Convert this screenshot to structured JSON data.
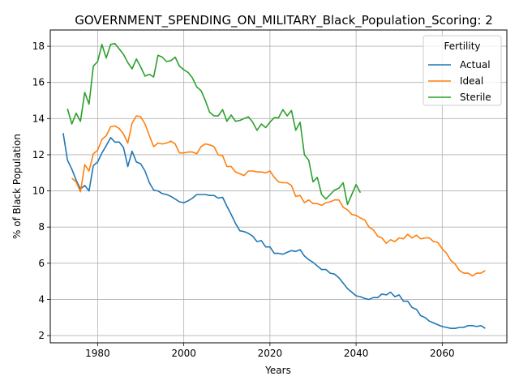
{
  "chart_data": {
    "type": "line",
    "title": "GOVERNMENT_SPENDING_ON_MILITARY_Black_Population_Scoring: 2",
    "xlabel": "Years",
    "ylabel": "% of Black Population",
    "xlim": [
      1969,
      2075
    ],
    "ylim": [
      1.6,
      18.9
    ],
    "xticks": [
      1980,
      2000,
      2020,
      2040,
      2060
    ],
    "yticks": [
      2,
      4,
      6,
      8,
      10,
      12,
      14,
      16,
      18
    ],
    "grid": true,
    "legend": {
      "title": "Fertility",
      "position": "top-right"
    },
    "series": [
      {
        "name": "Actual",
        "color": "#1f77b4",
        "points": [
          [
            1972,
            13.2
          ],
          [
            1973,
            11.7
          ],
          [
            1974,
            11.2
          ],
          [
            1975,
            10.6
          ],
          [
            1976,
            10.1
          ],
          [
            1977,
            10.3
          ],
          [
            1978,
            10.0
          ],
          [
            1979,
            11.4
          ],
          [
            1980,
            11.6
          ],
          [
            1981,
            12.1
          ],
          [
            1982,
            12.5
          ],
          [
            1983,
            12.95
          ],
          [
            1984,
            12.7
          ],
          [
            1985,
            12.7
          ],
          [
            1986,
            12.4
          ],
          [
            1987,
            11.35
          ],
          [
            1988,
            12.2
          ],
          [
            1989,
            11.6
          ],
          [
            1990,
            11.5
          ],
          [
            1991,
            11.1
          ],
          [
            1992,
            10.45
          ],
          [
            1993,
            10.05
          ],
          [
            1994,
            10.0
          ],
          [
            1995,
            9.85
          ],
          [
            1996,
            9.8
          ],
          [
            1997,
            9.7
          ],
          [
            1998,
            9.55
          ],
          [
            1999,
            9.4
          ],
          [
            2000,
            9.35
          ],
          [
            2001,
            9.45
          ],
          [
            2002,
            9.6
          ],
          [
            2003,
            9.8
          ],
          [
            2004,
            9.8
          ],
          [
            2005,
            9.8
          ],
          [
            2006,
            9.75
          ],
          [
            2007,
            9.75
          ],
          [
            2008,
            9.6
          ],
          [
            2009,
            9.65
          ],
          [
            2010,
            9.15
          ],
          [
            2011,
            8.7
          ],
          [
            2012,
            8.2
          ],
          [
            2013,
            7.8
          ],
          [
            2014,
            7.75
          ],
          [
            2015,
            7.65
          ],
          [
            2016,
            7.5
          ],
          [
            2017,
            7.2
          ],
          [
            2018,
            7.25
          ],
          [
            2019,
            6.9
          ],
          [
            2020,
            6.9
          ],
          [
            2021,
            6.55
          ],
          [
            2022,
            6.55
          ],
          [
            2023,
            6.5
          ],
          [
            2024,
            6.6
          ],
          [
            2025,
            6.7
          ],
          [
            2026,
            6.65
          ],
          [
            2027,
            6.75
          ],
          [
            2028,
            6.4
          ],
          [
            2029,
            6.2
          ],
          [
            2030,
            6.05
          ],
          [
            2031,
            5.85
          ],
          [
            2032,
            5.65
          ],
          [
            2033,
            5.65
          ],
          [
            2034,
            5.45
          ],
          [
            2035,
            5.4
          ],
          [
            2036,
            5.2
          ],
          [
            2037,
            4.9
          ],
          [
            2038,
            4.6
          ],
          [
            2039,
            4.4
          ],
          [
            2040,
            4.2
          ],
          [
            2041,
            4.15
          ],
          [
            2042,
            4.05
          ],
          [
            2043,
            4.0
          ],
          [
            2044,
            4.1
          ],
          [
            2045,
            4.1
          ],
          [
            2046,
            4.3
          ],
          [
            2047,
            4.25
          ],
          [
            2048,
            4.4
          ],
          [
            2049,
            4.15
          ],
          [
            2050,
            4.25
          ],
          [
            2051,
            3.9
          ],
          [
            2052,
            3.9
          ],
          [
            2053,
            3.55
          ],
          [
            2054,
            3.45
          ],
          [
            2055,
            3.1
          ],
          [
            2056,
            3.0
          ],
          [
            2057,
            2.8
          ],
          [
            2058,
            2.7
          ],
          [
            2059,
            2.6
          ],
          [
            2060,
            2.5
          ],
          [
            2061,
            2.45
          ],
          [
            2062,
            2.4
          ],
          [
            2063,
            2.4
          ],
          [
            2064,
            2.45
          ],
          [
            2065,
            2.45
          ],
          [
            2066,
            2.55
          ],
          [
            2067,
            2.55
          ],
          [
            2068,
            2.5
          ],
          [
            2069,
            2.55
          ],
          [
            2070,
            2.4
          ]
        ]
      },
      {
        "name": "Ideal",
        "color": "#ff7f0e",
        "points": [
          [
            1974,
            10.7
          ],
          [
            1975,
            10.5
          ],
          [
            1976,
            9.95
          ],
          [
            1977,
            11.45
          ],
          [
            1978,
            11.1
          ],
          [
            1979,
            12.05
          ],
          [
            1980,
            12.25
          ],
          [
            1981,
            12.85
          ],
          [
            1982,
            13.05
          ],
          [
            1983,
            13.55
          ],
          [
            1984,
            13.6
          ],
          [
            1985,
            13.45
          ],
          [
            1986,
            13.15
          ],
          [
            1987,
            12.65
          ],
          [
            1988,
            13.75
          ],
          [
            1989,
            14.15
          ],
          [
            1990,
            14.1
          ],
          [
            1991,
            13.7
          ],
          [
            1992,
            13.05
          ],
          [
            1993,
            12.45
          ],
          [
            1994,
            12.65
          ],
          [
            1995,
            12.6
          ],
          [
            1996,
            12.65
          ],
          [
            1997,
            12.75
          ],
          [
            1998,
            12.6
          ],
          [
            1999,
            12.1
          ],
          [
            2000,
            12.1
          ],
          [
            2001,
            12.15
          ],
          [
            2002,
            12.15
          ],
          [
            2003,
            12.05
          ],
          [
            2004,
            12.45
          ],
          [
            2005,
            12.6
          ],
          [
            2006,
            12.55
          ],
          [
            2007,
            12.45
          ],
          [
            2008,
            12.0
          ],
          [
            2009,
            11.95
          ],
          [
            2010,
            11.35
          ],
          [
            2011,
            11.35
          ],
          [
            2012,
            11.05
          ],
          [
            2013,
            10.95
          ],
          [
            2014,
            10.85
          ],
          [
            2015,
            11.1
          ],
          [
            2016,
            11.1
          ],
          [
            2017,
            11.05
          ],
          [
            2018,
            11.05
          ],
          [
            2019,
            11.0
          ],
          [
            2020,
            11.1
          ],
          [
            2021,
            10.75
          ],
          [
            2022,
            10.5
          ],
          [
            2023,
            10.45
          ],
          [
            2024,
            10.45
          ],
          [
            2025,
            10.3
          ],
          [
            2026,
            9.7
          ],
          [
            2027,
            9.75
          ],
          [
            2028,
            9.35
          ],
          [
            2029,
            9.5
          ],
          [
            2030,
            9.3
          ],
          [
            2031,
            9.3
          ],
          [
            2032,
            9.2
          ],
          [
            2033,
            9.35
          ],
          [
            2034,
            9.4
          ],
          [
            2035,
            9.5
          ],
          [
            2036,
            9.5
          ],
          [
            2037,
            9.1
          ],
          [
            2038,
            8.95
          ],
          [
            2039,
            8.7
          ],
          [
            2040,
            8.65
          ],
          [
            2041,
            8.5
          ],
          [
            2042,
            8.4
          ],
          [
            2043,
            8.0
          ],
          [
            2044,
            7.85
          ],
          [
            2045,
            7.5
          ],
          [
            2046,
            7.4
          ],
          [
            2047,
            7.1
          ],
          [
            2048,
            7.3
          ],
          [
            2049,
            7.2
          ],
          [
            2050,
            7.4
          ],
          [
            2051,
            7.35
          ],
          [
            2052,
            7.6
          ],
          [
            2053,
            7.4
          ],
          [
            2054,
            7.55
          ],
          [
            2055,
            7.35
          ],
          [
            2056,
            7.4
          ],
          [
            2057,
            7.4
          ],
          [
            2058,
            7.2
          ],
          [
            2059,
            7.15
          ],
          [
            2060,
            6.8
          ],
          [
            2061,
            6.55
          ],
          [
            2062,
            6.15
          ],
          [
            2063,
            5.95
          ],
          [
            2064,
            5.6
          ],
          [
            2065,
            5.45
          ],
          [
            2066,
            5.45
          ],
          [
            2067,
            5.3
          ],
          [
            2068,
            5.45
          ],
          [
            2069,
            5.45
          ],
          [
            2070,
            5.6
          ]
        ]
      },
      {
        "name": "Sterile",
        "color": "#2ca02c",
        "points": [
          [
            1973,
            14.55
          ],
          [
            1974,
            13.7
          ],
          [
            1975,
            14.3
          ],
          [
            1976,
            13.85
          ],
          [
            1977,
            15.45
          ],
          [
            1978,
            14.8
          ],
          [
            1979,
            16.9
          ],
          [
            1980,
            17.15
          ],
          [
            1981,
            18.1
          ],
          [
            1982,
            17.35
          ],
          [
            1983,
            18.1
          ],
          [
            1984,
            18.15
          ],
          [
            1985,
            17.85
          ],
          [
            1986,
            17.55
          ],
          [
            1987,
            17.1
          ],
          [
            1988,
            16.75
          ],
          [
            1989,
            17.3
          ],
          [
            1990,
            16.85
          ],
          [
            1991,
            16.35
          ],
          [
            1992,
            16.45
          ],
          [
            1993,
            16.3
          ],
          [
            1994,
            17.5
          ],
          [
            1995,
            17.4
          ],
          [
            1996,
            17.15
          ],
          [
            1997,
            17.2
          ],
          [
            1998,
            17.4
          ],
          [
            1999,
            16.9
          ],
          [
            2000,
            16.7
          ],
          [
            2001,
            16.55
          ],
          [
            2002,
            16.25
          ],
          [
            2003,
            15.75
          ],
          [
            2004,
            15.55
          ],
          [
            2005,
            15.0
          ],
          [
            2006,
            14.35
          ],
          [
            2007,
            14.15
          ],
          [
            2008,
            14.15
          ],
          [
            2009,
            14.5
          ],
          [
            2010,
            13.85
          ],
          [
            2011,
            14.2
          ],
          [
            2012,
            13.85
          ],
          [
            2013,
            13.9
          ],
          [
            2014,
            14.0
          ],
          [
            2015,
            14.1
          ],
          [
            2016,
            13.8
          ],
          [
            2017,
            13.35
          ],
          [
            2018,
            13.7
          ],
          [
            2019,
            13.5
          ],
          [
            2020,
            13.8
          ],
          [
            2021,
            14.05
          ],
          [
            2022,
            14.05
          ],
          [
            2023,
            14.5
          ],
          [
            2024,
            14.15
          ],
          [
            2025,
            14.45
          ],
          [
            2026,
            13.35
          ],
          [
            2027,
            13.8
          ],
          [
            2028,
            12.0
          ],
          [
            2029,
            11.7
          ],
          [
            2030,
            10.5
          ],
          [
            2031,
            10.75
          ],
          [
            2032,
            9.8
          ],
          [
            2033,
            9.55
          ],
          [
            2034,
            9.8
          ],
          [
            2035,
            10.05
          ],
          [
            2036,
            10.15
          ],
          [
            2037,
            10.45
          ],
          [
            2038,
            9.25
          ],
          [
            2039,
            9.8
          ],
          [
            2040,
            10.35
          ],
          [
            2041,
            9.9
          ]
        ]
      }
    ]
  }
}
